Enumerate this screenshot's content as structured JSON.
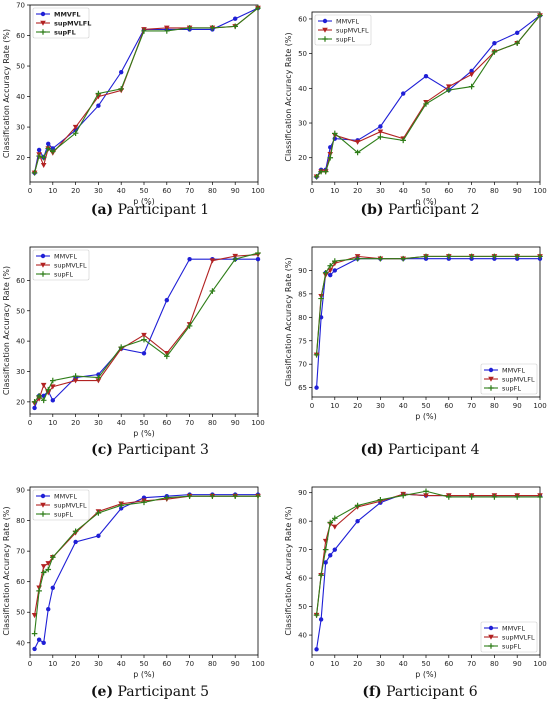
{
  "chart_data": [
    {
      "type": "line",
      "caption_tag": "(a)",
      "caption_text": "Participant 1",
      "xlabel": "p (%)",
      "ylabel": "Classification Accuracy Rate (%)",
      "xlim": [
        0,
        100
      ],
      "ylim": [
        12,
        70
      ],
      "xticks": [
        0,
        10,
        20,
        30,
        40,
        50,
        60,
        70,
        80,
        90,
        100
      ],
      "yticks": [
        20,
        30,
        40,
        50,
        60,
        70
      ],
      "legend": "top-left",
      "legend_bold": true,
      "x": [
        2,
        4,
        6,
        8,
        10,
        20,
        30,
        40,
        50,
        60,
        70,
        80,
        90,
        100
      ],
      "series": [
        {
          "name": "MMVFL",
          "color": "#1f1fd6",
          "marker": "circle",
          "values": [
            15,
            22.5,
            20,
            24.5,
            23,
            29,
            37,
            48,
            62,
            62,
            62,
            62,
            65.5,
            69
          ]
        },
        {
          "name": "supMVLFL",
          "color": "#b22222",
          "marker": "triangle-down",
          "values": [
            15,
            21,
            17.5,
            23,
            21.5,
            30,
            40,
            42,
            62,
            62.5,
            62.5,
            62.5,
            63,
            69
          ]
        },
        {
          "name": "supFL",
          "color": "#2e7d18",
          "marker": "plus",
          "values": [
            15,
            20.5,
            20,
            23,
            22,
            28,
            41,
            42.5,
            61.5,
            61.5,
            62.5,
            62.5,
            63,
            69
          ]
        }
      ]
    },
    {
      "type": "line",
      "caption_tag": "(b)",
      "caption_text": "Participant 2",
      "xlabel": "p (%)",
      "ylabel": "Classification Accuracy Rate (%)",
      "xlim": [
        0,
        100
      ],
      "ylim": [
        13,
        62
      ],
      "xticks": [
        0,
        10,
        20,
        30,
        40,
        50,
        60,
        70,
        80,
        90,
        100
      ],
      "yticks": [
        20,
        30,
        40,
        50,
        60
      ],
      "legend": "top-left",
      "legend_bold": false,
      "x": [
        2,
        4,
        6,
        8,
        10,
        20,
        30,
        40,
        50,
        60,
        70,
        80,
        90,
        100
      ],
      "series": [
        {
          "name": "MMVFL",
          "color": "#1f1fd6",
          "marker": "circle",
          "values": [
            14.5,
            16.5,
            16.5,
            23,
            25.5,
            25,
            29,
            38.5,
            43.5,
            39.5,
            45,
            53,
            56,
            61
          ]
        },
        {
          "name": "supMVLFL",
          "color": "#b22222",
          "marker": "triangle-down",
          "values": [
            14.5,
            16,
            16,
            21,
            26.5,
            24.5,
            27.5,
            25.5,
            36,
            40.5,
            44,
            50.5,
            53,
            61
          ]
        },
        {
          "name": "supFL",
          "color": "#2e7d18",
          "marker": "plus",
          "values": [
            14.5,
            16,
            16,
            20,
            27,
            21.5,
            26,
            25,
            35.5,
            39.5,
            40.5,
            50.5,
            53,
            61
          ]
        }
      ]
    },
    {
      "type": "line",
      "caption_tag": "(c)",
      "caption_text": "Participant 3",
      "xlabel": "p (%)",
      "ylabel": "Classification Accuracy Rate (%)",
      "xlim": [
        0,
        100
      ],
      "ylim": [
        16,
        71
      ],
      "xticks": [
        0,
        10,
        20,
        30,
        40,
        50,
        60,
        70,
        80,
        90,
        100
      ],
      "yticks": [
        20,
        30,
        40,
        50,
        60
      ],
      "legend": "top-left",
      "legend_bold": false,
      "x": [
        2,
        4,
        6,
        8,
        10,
        20,
        30,
        40,
        50,
        60,
        70,
        80,
        90,
        100
      ],
      "series": [
        {
          "name": "MMVFL",
          "color": "#1f1fd6",
          "marker": "circle",
          "values": [
            18,
            22,
            22,
            23.5,
            20.5,
            28,
            29,
            37.5,
            36,
            53.5,
            67,
            67,
            67,
            67
          ]
        },
        {
          "name": "supMVLFL",
          "color": "#b22222",
          "marker": "triangle-down",
          "values": [
            19.5,
            21,
            25.5,
            23,
            25,
            27,
            27,
            37.5,
            42,
            36,
            45.5,
            66.5,
            68,
            68.5
          ]
        },
        {
          "name": "supFL",
          "color": "#2e7d18",
          "marker": "plus",
          "values": [
            20,
            22,
            20.5,
            24,
            27,
            28.5,
            28,
            38,
            40.5,
            35,
            45,
            56.5,
            67,
            69
          ]
        }
      ]
    },
    {
      "type": "line",
      "caption_tag": "(d)",
      "caption_text": "Participant 4",
      "xlabel": "p (%)",
      "ylabel": "Classification Accuracy Rate (%)",
      "xlim": [
        0,
        100
      ],
      "ylim": [
        63,
        95
      ],
      "xticks": [
        0,
        10,
        20,
        30,
        40,
        50,
        60,
        70,
        80,
        90,
        100
      ],
      "yticks": [
        65,
        70,
        75,
        80,
        85,
        90
      ],
      "legend": "bottom-right",
      "legend_bold": false,
      "x": [
        2,
        4,
        6,
        8,
        10,
        20,
        30,
        40,
        50,
        60,
        70,
        80,
        90,
        100
      ],
      "series": [
        {
          "name": "MMVFL",
          "color": "#1f1fd6",
          "marker": "circle",
          "values": [
            65,
            80,
            89.5,
            89,
            90,
            92.5,
            92.5,
            92.5,
            92.5,
            92.5,
            92.5,
            92.5,
            92.5,
            92.5
          ]
        },
        {
          "name": "supMVLFL",
          "color": "#b22222",
          "marker": "triangle-down",
          "values": [
            72,
            84.5,
            89,
            90,
            91.5,
            93,
            92.5,
            92.5,
            93,
            93,
            93,
            93,
            93,
            93
          ]
        },
        {
          "name": "supFL",
          "color": "#2e7d18",
          "marker": "plus",
          "values": [
            72,
            84,
            89.5,
            91,
            92,
            92.5,
            92.5,
            92.5,
            93,
            93,
            93,
            93,
            93,
            93
          ]
        }
      ]
    },
    {
      "type": "line",
      "caption_tag": "(e)",
      "caption_text": "Participant 5",
      "xlabel": "p (%)",
      "ylabel": "Classification Accuracy Rate (%)",
      "xlim": [
        0,
        100
      ],
      "ylim": [
        36,
        91
      ],
      "xticks": [
        0,
        10,
        20,
        30,
        40,
        50,
        60,
        70,
        80,
        90,
        100
      ],
      "yticks": [
        40,
        50,
        60,
        70,
        80,
        90
      ],
      "legend": "top-left",
      "legend_bold": false,
      "x": [
        2,
        4,
        6,
        8,
        10,
        20,
        30,
        40,
        50,
        60,
        70,
        80,
        90,
        100
      ],
      "series": [
        {
          "name": "MMVFL",
          "color": "#1f1fd6",
          "marker": "circle",
          "values": [
            38,
            41,
            40,
            51,
            58,
            73,
            75,
            84,
            87.5,
            88,
            88.5,
            88.5,
            88.5,
            88.5
          ]
        },
        {
          "name": "supMVLFL",
          "color": "#b22222",
          "marker": "triangle-down",
          "values": [
            49,
            58,
            65,
            66,
            68,
            76,
            83,
            85.5,
            86.5,
            87,
            88,
            88,
            88,
            88
          ]
        },
        {
          "name": "supFL",
          "color": "#2e7d18",
          "marker": "plus",
          "values": [
            43,
            57,
            63,
            64,
            68,
            76.5,
            82.5,
            85,
            86,
            87.5,
            88,
            88,
            88,
            88
          ]
        }
      ]
    },
    {
      "type": "line",
      "caption_tag": "(f)",
      "caption_text": "Participant 6",
      "xlabel": "p (%)",
      "ylabel": "Classification Accuracy Rate (%)",
      "xlim": [
        0,
        100
      ],
      "ylim": [
        33,
        92
      ],
      "xticks": [
        0,
        10,
        20,
        30,
        40,
        50,
        60,
        70,
        80,
        90,
        100
      ],
      "yticks": [
        40,
        50,
        60,
        70,
        80,
        90
      ],
      "legend": "bottom-right",
      "legend_bold": false,
      "x": [
        2,
        4,
        6,
        8,
        10,
        20,
        30,
        40,
        50,
        60,
        70,
        80,
        90,
        100
      ],
      "series": [
        {
          "name": "MMVFL",
          "color": "#1f1fd6",
          "marker": "circle",
          "values": [
            35,
            45.5,
            65.5,
            68,
            70,
            80,
            86.5,
            89.5,
            89,
            89,
            89,
            89,
            89,
            89
          ]
        },
        {
          "name": "supMVLFL",
          "color": "#b22222",
          "marker": "triangle-down",
          "values": [
            47,
            61,
            73,
            79,
            78,
            85,
            87,
            89.5,
            89,
            89,
            89,
            89,
            89,
            89
          ]
        },
        {
          "name": "supFL",
          "color": "#2e7d18",
          "marker": "plus",
          "values": [
            47,
            61,
            70,
            79.5,
            81,
            85.5,
            87.5,
            89,
            90.5,
            88.5,
            88.5,
            88.5,
            88.5,
            88.5
          ]
        }
      ]
    }
  ]
}
